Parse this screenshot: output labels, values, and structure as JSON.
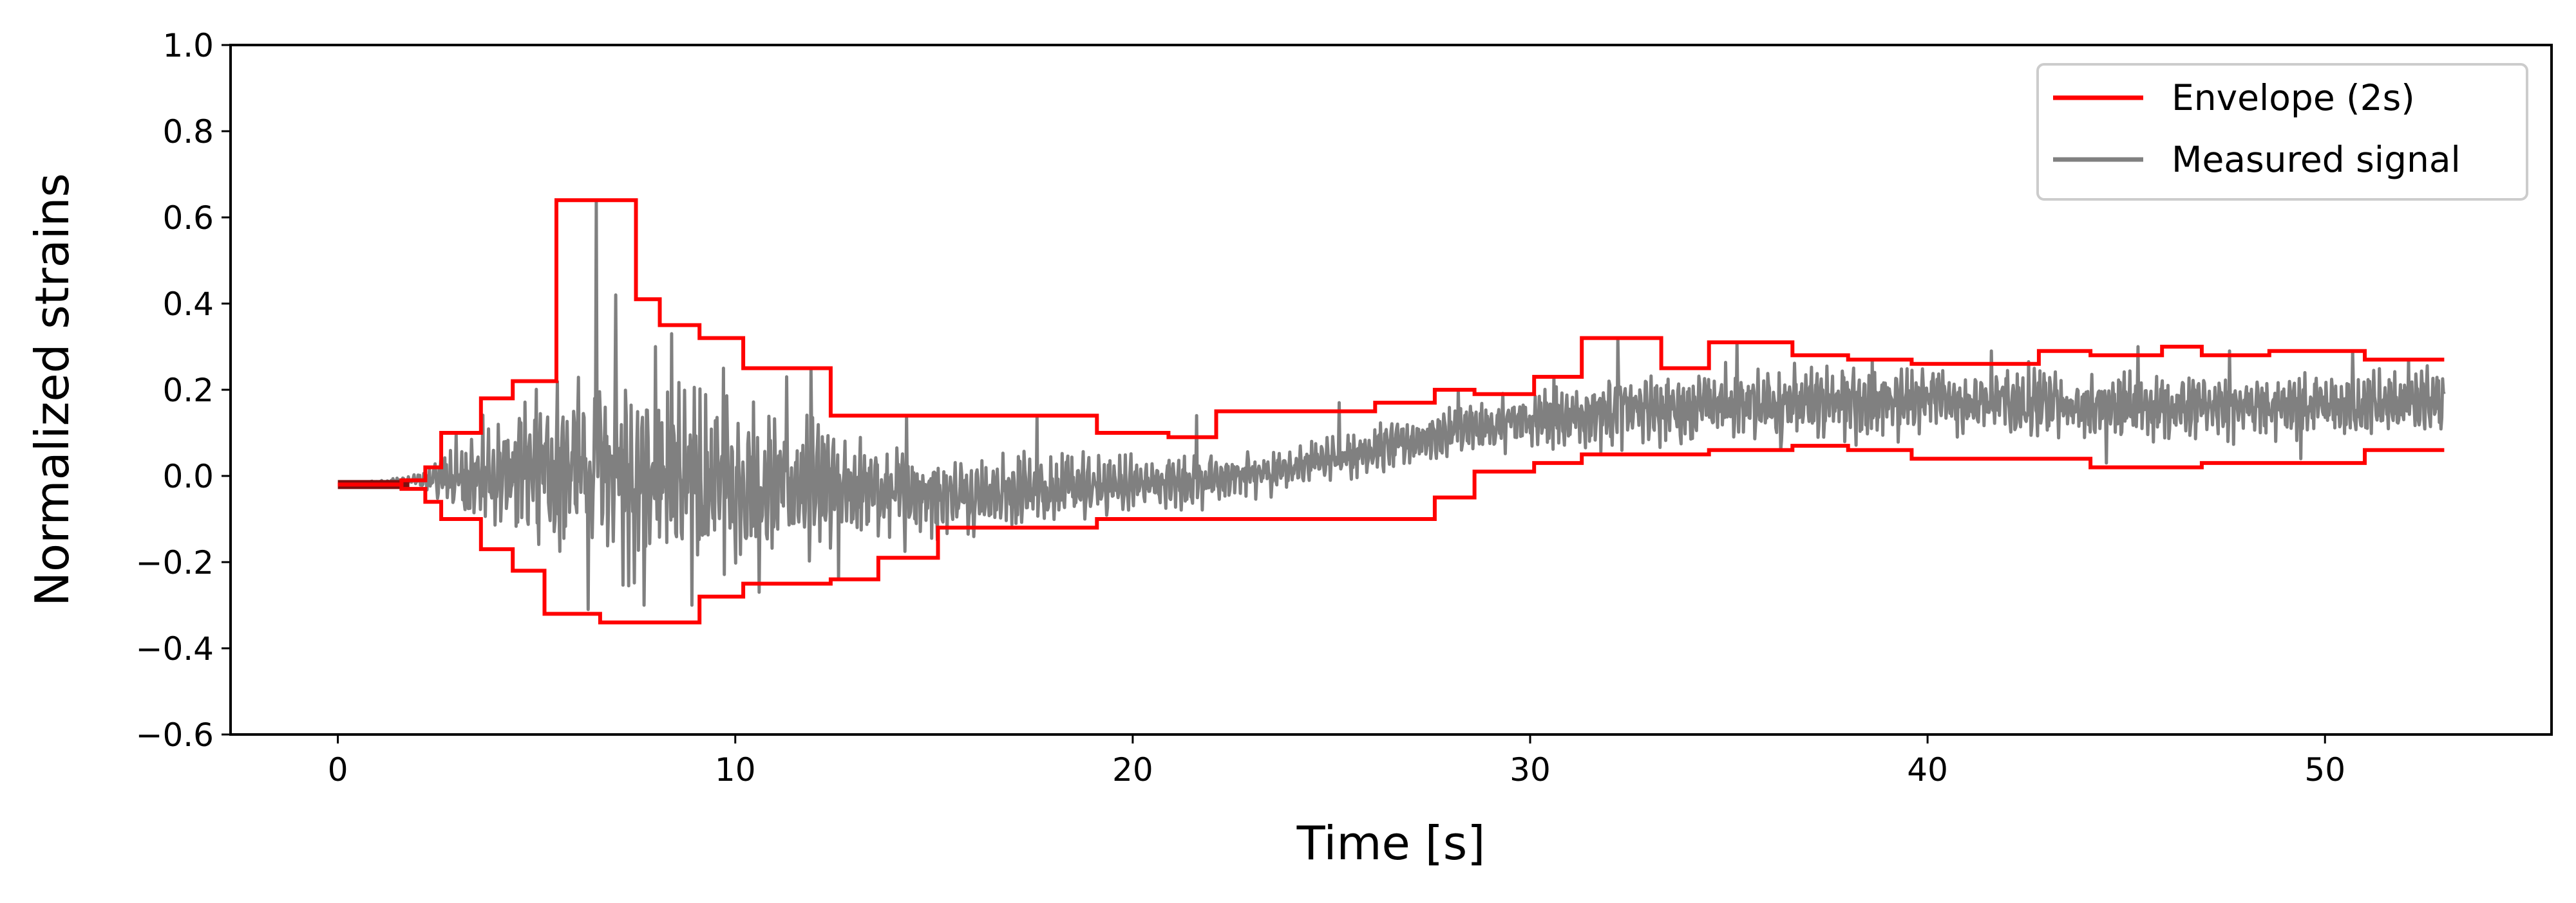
{
  "chart_data": {
    "type": "line",
    "xlabel": "Time [s]",
    "ylabel": "Normalized strains",
    "xlim": [
      -2.7,
      55.7
    ],
    "ylim": [
      -0.6,
      1.0
    ],
    "x_ticks": [
      0,
      10,
      20,
      30,
      40,
      50
    ],
    "y_ticks": [
      -0.6,
      -0.4,
      -0.2,
      0.0,
      0.2,
      0.4,
      0.6,
      0.8,
      1.0
    ],
    "x_tick_labels": [
      "0",
      "10",
      "20",
      "30",
      "40",
      "50"
    ],
    "y_tick_labels": [
      "−0.6",
      "−0.4",
      "−0.2",
      "0.0",
      "0.2",
      "0.4",
      "0.6",
      "0.8",
      "1.0"
    ],
    "grid": false,
    "legend_position": "top-right",
    "series": [
      {
        "name": "Envelope (2s)",
        "color": "#ff0000",
        "style": "step",
        "upper": {
          "x": [
            0,
            1.6,
            2.2,
            2.6,
            3.6,
            4.4,
            5.5,
            7.5,
            8.1,
            9.1,
            10.2,
            12.4,
            13.6,
            15.1,
            19.1,
            20.9,
            22.1,
            26.1,
            27.6,
            28.6,
            30.1,
            31.3,
            33.3,
            34.5,
            36.6,
            38.0,
            39.6,
            41.0,
            42.8,
            44.1,
            45.9,
            46.9,
            48.6,
            51.0,
            53.0
          ],
          "y": [
            -0.02,
            -0.01,
            0.02,
            0.1,
            0.18,
            0.22,
            0.64,
            0.41,
            0.35,
            0.32,
            0.25,
            0.14,
            0.14,
            0.14,
            0.1,
            0.09,
            0.15,
            0.17,
            0.2,
            0.19,
            0.23,
            0.32,
            0.25,
            0.31,
            0.28,
            0.27,
            0.26,
            0.26,
            0.29,
            0.28,
            0.3,
            0.28,
            0.29,
            0.27,
            0.27
          ]
        },
        "lower": {
          "x": [
            0,
            1.6,
            2.2,
            2.6,
            3.6,
            4.4,
            5.2,
            6.6,
            8.2,
            9.1,
            10.2,
            12.4,
            13.6,
            15.1,
            19.1,
            20.9,
            22.1,
            26.1,
            27.6,
            28.6,
            30.1,
            31.3,
            33.3,
            34.5,
            36.6,
            38.0,
            39.6,
            41.0,
            42.8,
            44.1,
            45.9,
            46.9,
            48.6,
            51.0,
            53.0
          ],
          "y": [
            -0.02,
            -0.03,
            -0.06,
            -0.1,
            -0.17,
            -0.22,
            -0.32,
            -0.34,
            -0.34,
            -0.28,
            -0.25,
            -0.24,
            -0.19,
            -0.12,
            -0.1,
            -0.1,
            -0.1,
            -0.1,
            -0.05,
            0.01,
            0.03,
            0.05,
            0.05,
            0.06,
            0.07,
            0.06,
            0.04,
            0.04,
            0.04,
            0.02,
            0.02,
            0.03,
            0.03,
            0.06,
            0.06
          ]
        }
      },
      {
        "name": "Measured signal",
        "color": "#808080",
        "style": "line",
        "t_end": 53.0,
        "samples": 2600,
        "center_curve": {
          "x": [
            0,
            2,
            4,
            6,
            8,
            10,
            12,
            14,
            16,
            18,
            20,
            22,
            24,
            26,
            28,
            30,
            32,
            34,
            36,
            38,
            40,
            42,
            44,
            46,
            48,
            50,
            53
          ],
          "y": [
            -0.02,
            -0.01,
            0.0,
            0.02,
            0.0,
            -0.02,
            -0.03,
            -0.04,
            -0.04,
            -0.03,
            -0.02,
            -0.01,
            0.02,
            0.06,
            0.1,
            0.13,
            0.15,
            0.16,
            0.17,
            0.17,
            0.18,
            0.17,
            0.16,
            0.16,
            0.16,
            0.16,
            0.17
          ]
        },
        "amplitude_curve": {
          "x": [
            0,
            2,
            3,
            5,
            7,
            9,
            11,
            13,
            15,
            17,
            19,
            21,
            23,
            25,
            27,
            29,
            31,
            33,
            35,
            37,
            39,
            41,
            43,
            45,
            47,
            49,
            51,
            53
          ],
          "y": [
            0.0,
            0.01,
            0.07,
            0.16,
            0.19,
            0.18,
            0.15,
            0.11,
            0.08,
            0.07,
            0.06,
            0.05,
            0.05,
            0.04,
            0.05,
            0.05,
            0.06,
            0.07,
            0.07,
            0.07,
            0.07,
            0.07,
            0.07,
            0.06,
            0.06,
            0.06,
            0.06,
            0.06
          ]
        },
        "spikes": [
          [
            6.5,
            0.64
          ],
          [
            6.3,
            -0.31
          ],
          [
            7.0,
            0.42
          ],
          [
            7.7,
            -0.3
          ],
          [
            8.0,
            0.3
          ],
          [
            8.4,
            0.33
          ],
          [
            8.9,
            -0.3
          ],
          [
            9.7,
            0.25
          ],
          [
            10.6,
            -0.27
          ],
          [
            11.3,
            0.23
          ],
          [
            11.9,
            0.25
          ],
          [
            12.6,
            -0.24
          ],
          [
            14.3,
            0.14
          ],
          [
            17.6,
            0.14
          ],
          [
            18.8,
            -0.1
          ],
          [
            21.6,
            0.14
          ],
          [
            25.2,
            0.17
          ],
          [
            28.2,
            0.2
          ],
          [
            30.6,
            0.23
          ],
          [
            32.2,
            0.32
          ],
          [
            35.2,
            0.31
          ],
          [
            36.3,
            0.06
          ],
          [
            38.6,
            0.27
          ],
          [
            41.6,
            0.29
          ],
          [
            44.5,
            0.03
          ],
          [
            45.3,
            0.3
          ],
          [
            47.6,
            0.29
          ],
          [
            49.4,
            0.04
          ],
          [
            50.7,
            0.29
          ],
          [
            52.1,
            0.27
          ]
        ]
      }
    ],
    "legend": [
      {
        "label": "Envelope (2s)",
        "color": "#ff0000"
      },
      {
        "label": "Measured signal",
        "color": "#808080"
      }
    ]
  }
}
